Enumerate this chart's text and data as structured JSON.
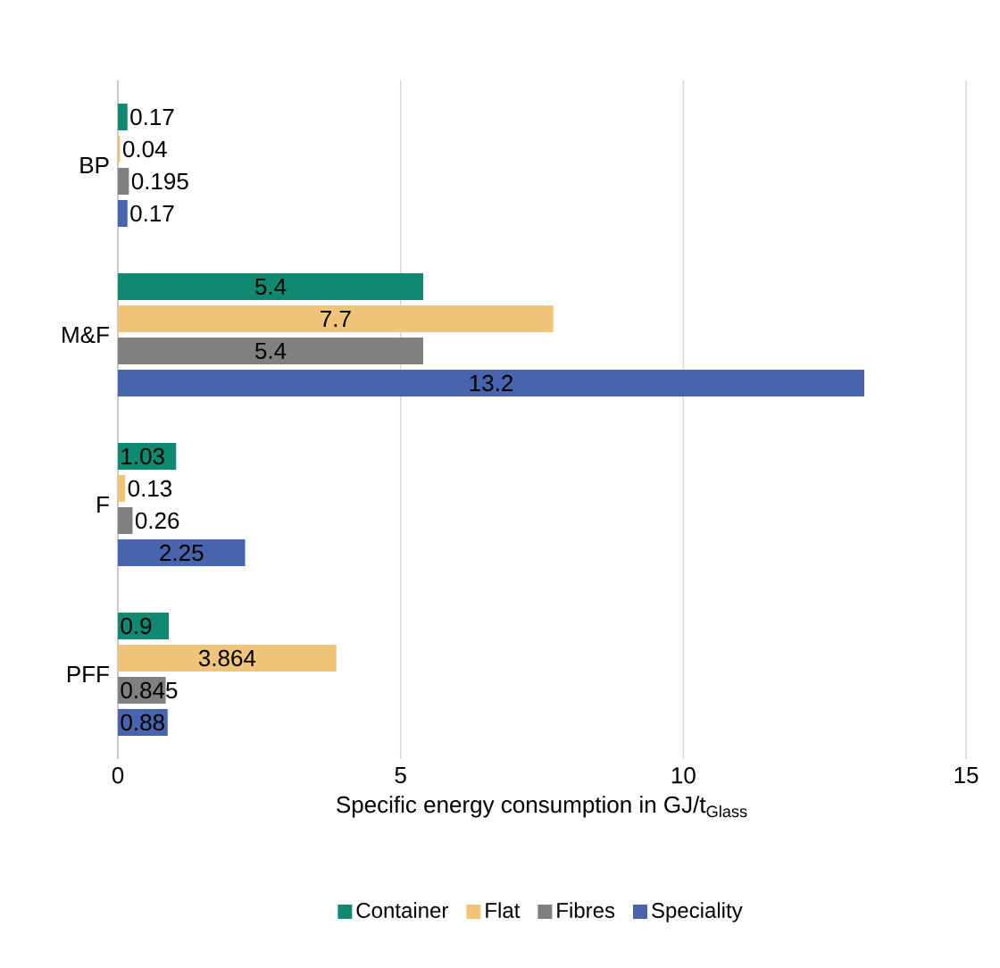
{
  "chart_data": {
    "type": "bar",
    "orientation": "horizontal",
    "xlabel": "Specific energy consumption in GJ/t$_{Glass}$",
    "categories": [
      "BP",
      "M&F",
      "F",
      "PFF"
    ],
    "series": [
      {
        "name": "Container",
        "color": "#0f8a70",
        "values": [
          0.17,
          5.4,
          1.03,
          0.9
        ],
        "value_labels": [
          "0.17",
          "5.4",
          "1.03",
          "0.9"
        ]
      },
      {
        "name": "Flat",
        "color": "#f0c479",
        "values": [
          0.04,
          7.7,
          0.13,
          3.864
        ],
        "value_labels": [
          "0.04",
          "7.7",
          "0.13",
          "3.864"
        ]
      },
      {
        "name": "Fibres",
        "color": "#808080",
        "values": [
          0.195,
          5.4,
          0.26,
          0.845
        ],
        "value_labels": [
          "0.195",
          "5.4",
          "0.26",
          "0.845"
        ]
      },
      {
        "name": "Speciality",
        "color": "#4864ad",
        "values": [
          0.17,
          13.2,
          2.25,
          0.88
        ],
        "value_labels": [
          "0.17",
          "13.2",
          "2.25",
          "0.88"
        ]
      }
    ],
    "xlim": [
      0,
      15
    ],
    "xticks": [
      0,
      5,
      10,
      15
    ],
    "grid": "x",
    "legend": "bottom"
  }
}
